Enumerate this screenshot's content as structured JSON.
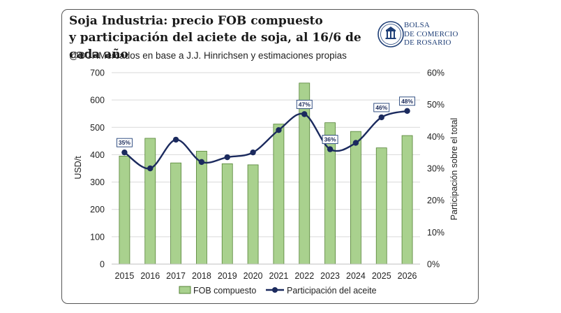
{
  "header": {
    "title_line1": "Soja Industria: precio FOB compuesto",
    "title_line2": "y participación del aciete de soja, al 16/6 de cada año",
    "subtitle": "@BCRMercados en base a J.J. Hinrichsen y estimaciones propias"
  },
  "logo": {
    "line1": "BOLSA",
    "line2": "DE COMERCIO",
    "line3": "DE ROSARIO",
    "icon": "bcr-crest-icon"
  },
  "colors": {
    "bar_fill": "#a9d18e",
    "bar_stroke": "#548235",
    "line": "#1b2a5e",
    "label_border": "#1f3f77"
  },
  "chart_data": {
    "type": "bar",
    "categories": [
      "2015",
      "2016",
      "2017",
      "2018",
      "2019",
      "2020",
      "2021",
      "2022",
      "2023",
      "2024",
      "2025",
      "2026"
    ],
    "series": [
      {
        "name": "FOB compuesto",
        "type": "bar",
        "axis": "left",
        "values": [
          395,
          460,
          370,
          413,
          367,
          363,
          512,
          662,
          517,
          485,
          425,
          470
        ]
      },
      {
        "name": "Participación del aceite",
        "type": "line",
        "axis": "right",
        "values": [
          35,
          30,
          39,
          32,
          33.5,
          35,
          42,
          47,
          36,
          38,
          46,
          48
        ]
      }
    ],
    "data_labels": [
      {
        "index": 0,
        "text": "35%"
      },
      {
        "index": 7,
        "text": "47%"
      },
      {
        "index": 8,
        "text": "36%"
      },
      {
        "index": 10,
        "text": "46%"
      },
      {
        "index": 11,
        "text": "48%"
      }
    ],
    "ylabel": "USD/t",
    "y2label": "Participación sobre el total",
    "ylim": [
      0,
      700
    ],
    "y2lim": [
      0,
      60
    ],
    "yticks": [
      "0",
      "100",
      "200",
      "300",
      "400",
      "500",
      "600",
      "700"
    ],
    "y2ticks": [
      "0%",
      "10%",
      "20%",
      "30%",
      "40%",
      "50%",
      "60%"
    ],
    "grid": true,
    "legend": "bottom"
  }
}
